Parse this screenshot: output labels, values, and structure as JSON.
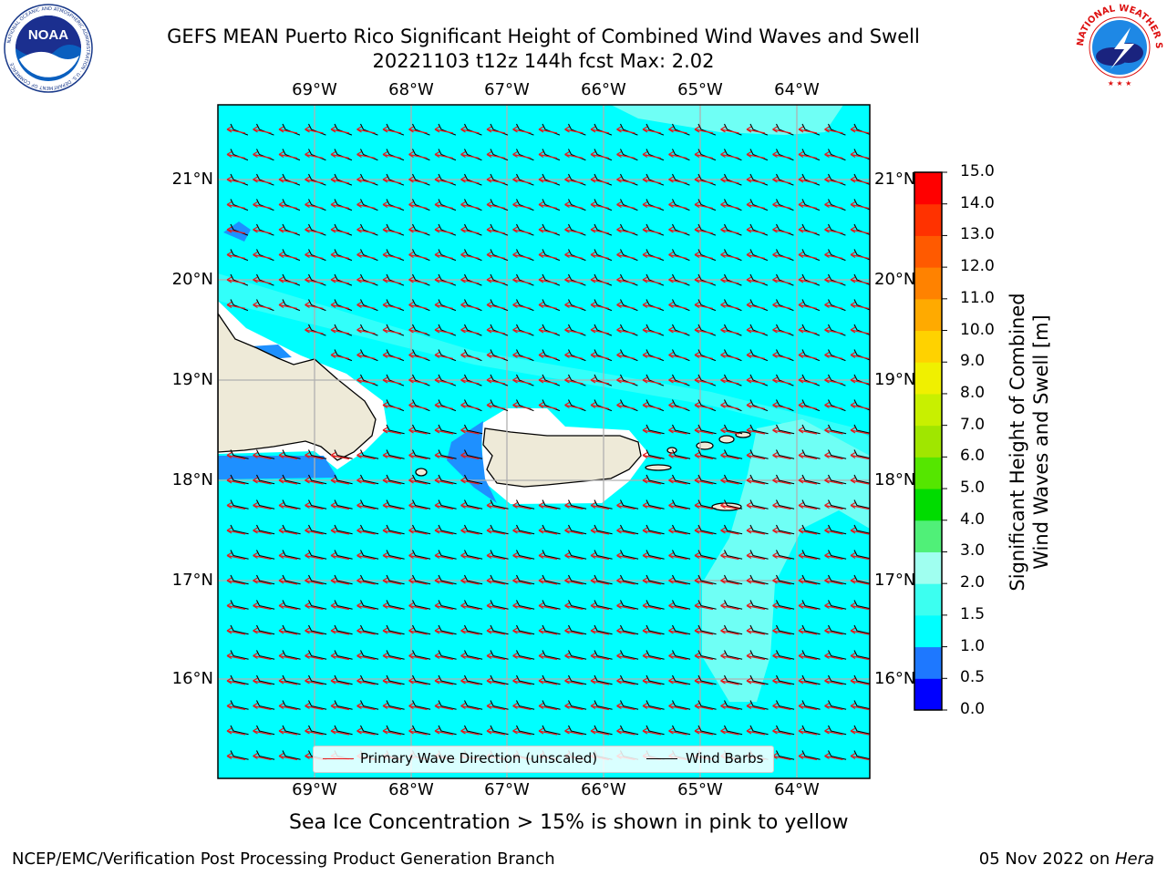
{
  "title": {
    "line1": "GEFS MEAN Puerto Rico Significant Height of Combined Wind Waves and Swell",
    "line2": "20221103 t12z 144h fcst   Max: 2.02"
  },
  "logos": {
    "left": "NOAA",
    "left_ring": "NATIONAL OCEANIC AND ATMOSPHERIC ADMINISTRATION · U.S. DEPARTMENT OF COMMERCE",
    "right_ring": "NATIONAL WEATHER SERVICE"
  },
  "map": {
    "lon_labels": [
      "69°W",
      "68°W",
      "67°W",
      "66°W",
      "65°W",
      "64°W"
    ],
    "lat_labels": [
      "21°N",
      "20°N",
      "19°N",
      "18°N",
      "17°N",
      "16°N"
    ],
    "ocean_color": "#00ffff",
    "land_color": "#eeead8",
    "shallow_color": "#1e90ff",
    "light_color": "#6ffff5"
  },
  "legend": {
    "wave_label": "Primary Wave Direction (unscaled)",
    "wave_color": "#e41a1c",
    "barb_label": "Wind Barbs",
    "barb_color": "#000000"
  },
  "colorbar": {
    "label_line1": "Significant Height of Combined",
    "label_line2": "Wind Waves and Swell [m]",
    "ticks": [
      "0.0",
      "0.5",
      "1.0",
      "1.5",
      "2.0",
      "3.0",
      "4.0",
      "5.0",
      "6.0",
      "7.0",
      "8.0",
      "9.0",
      "10.0",
      "11.0",
      "12.0",
      "13.0",
      "14.0",
      "15.0"
    ],
    "colors": [
      "#0000ff",
      "#1e78ff",
      "#00ffff",
      "#3cfff0",
      "#a0fff0",
      "#50f078",
      "#00dc00",
      "#55e600",
      "#a0e600",
      "#c8f000",
      "#f0f000",
      "#ffd200",
      "#ffaa00",
      "#ff8200",
      "#ff5a00",
      "#ff3200",
      "#ff0000"
    ]
  },
  "ice_note": "Sea Ice Concentration > 15% is shown in pink to yellow",
  "footer": {
    "left": "NCEP/EMC/Verification Post Processing Product Generation Branch",
    "date": "05 Nov 2022 on ",
    "host": "Hera"
  }
}
